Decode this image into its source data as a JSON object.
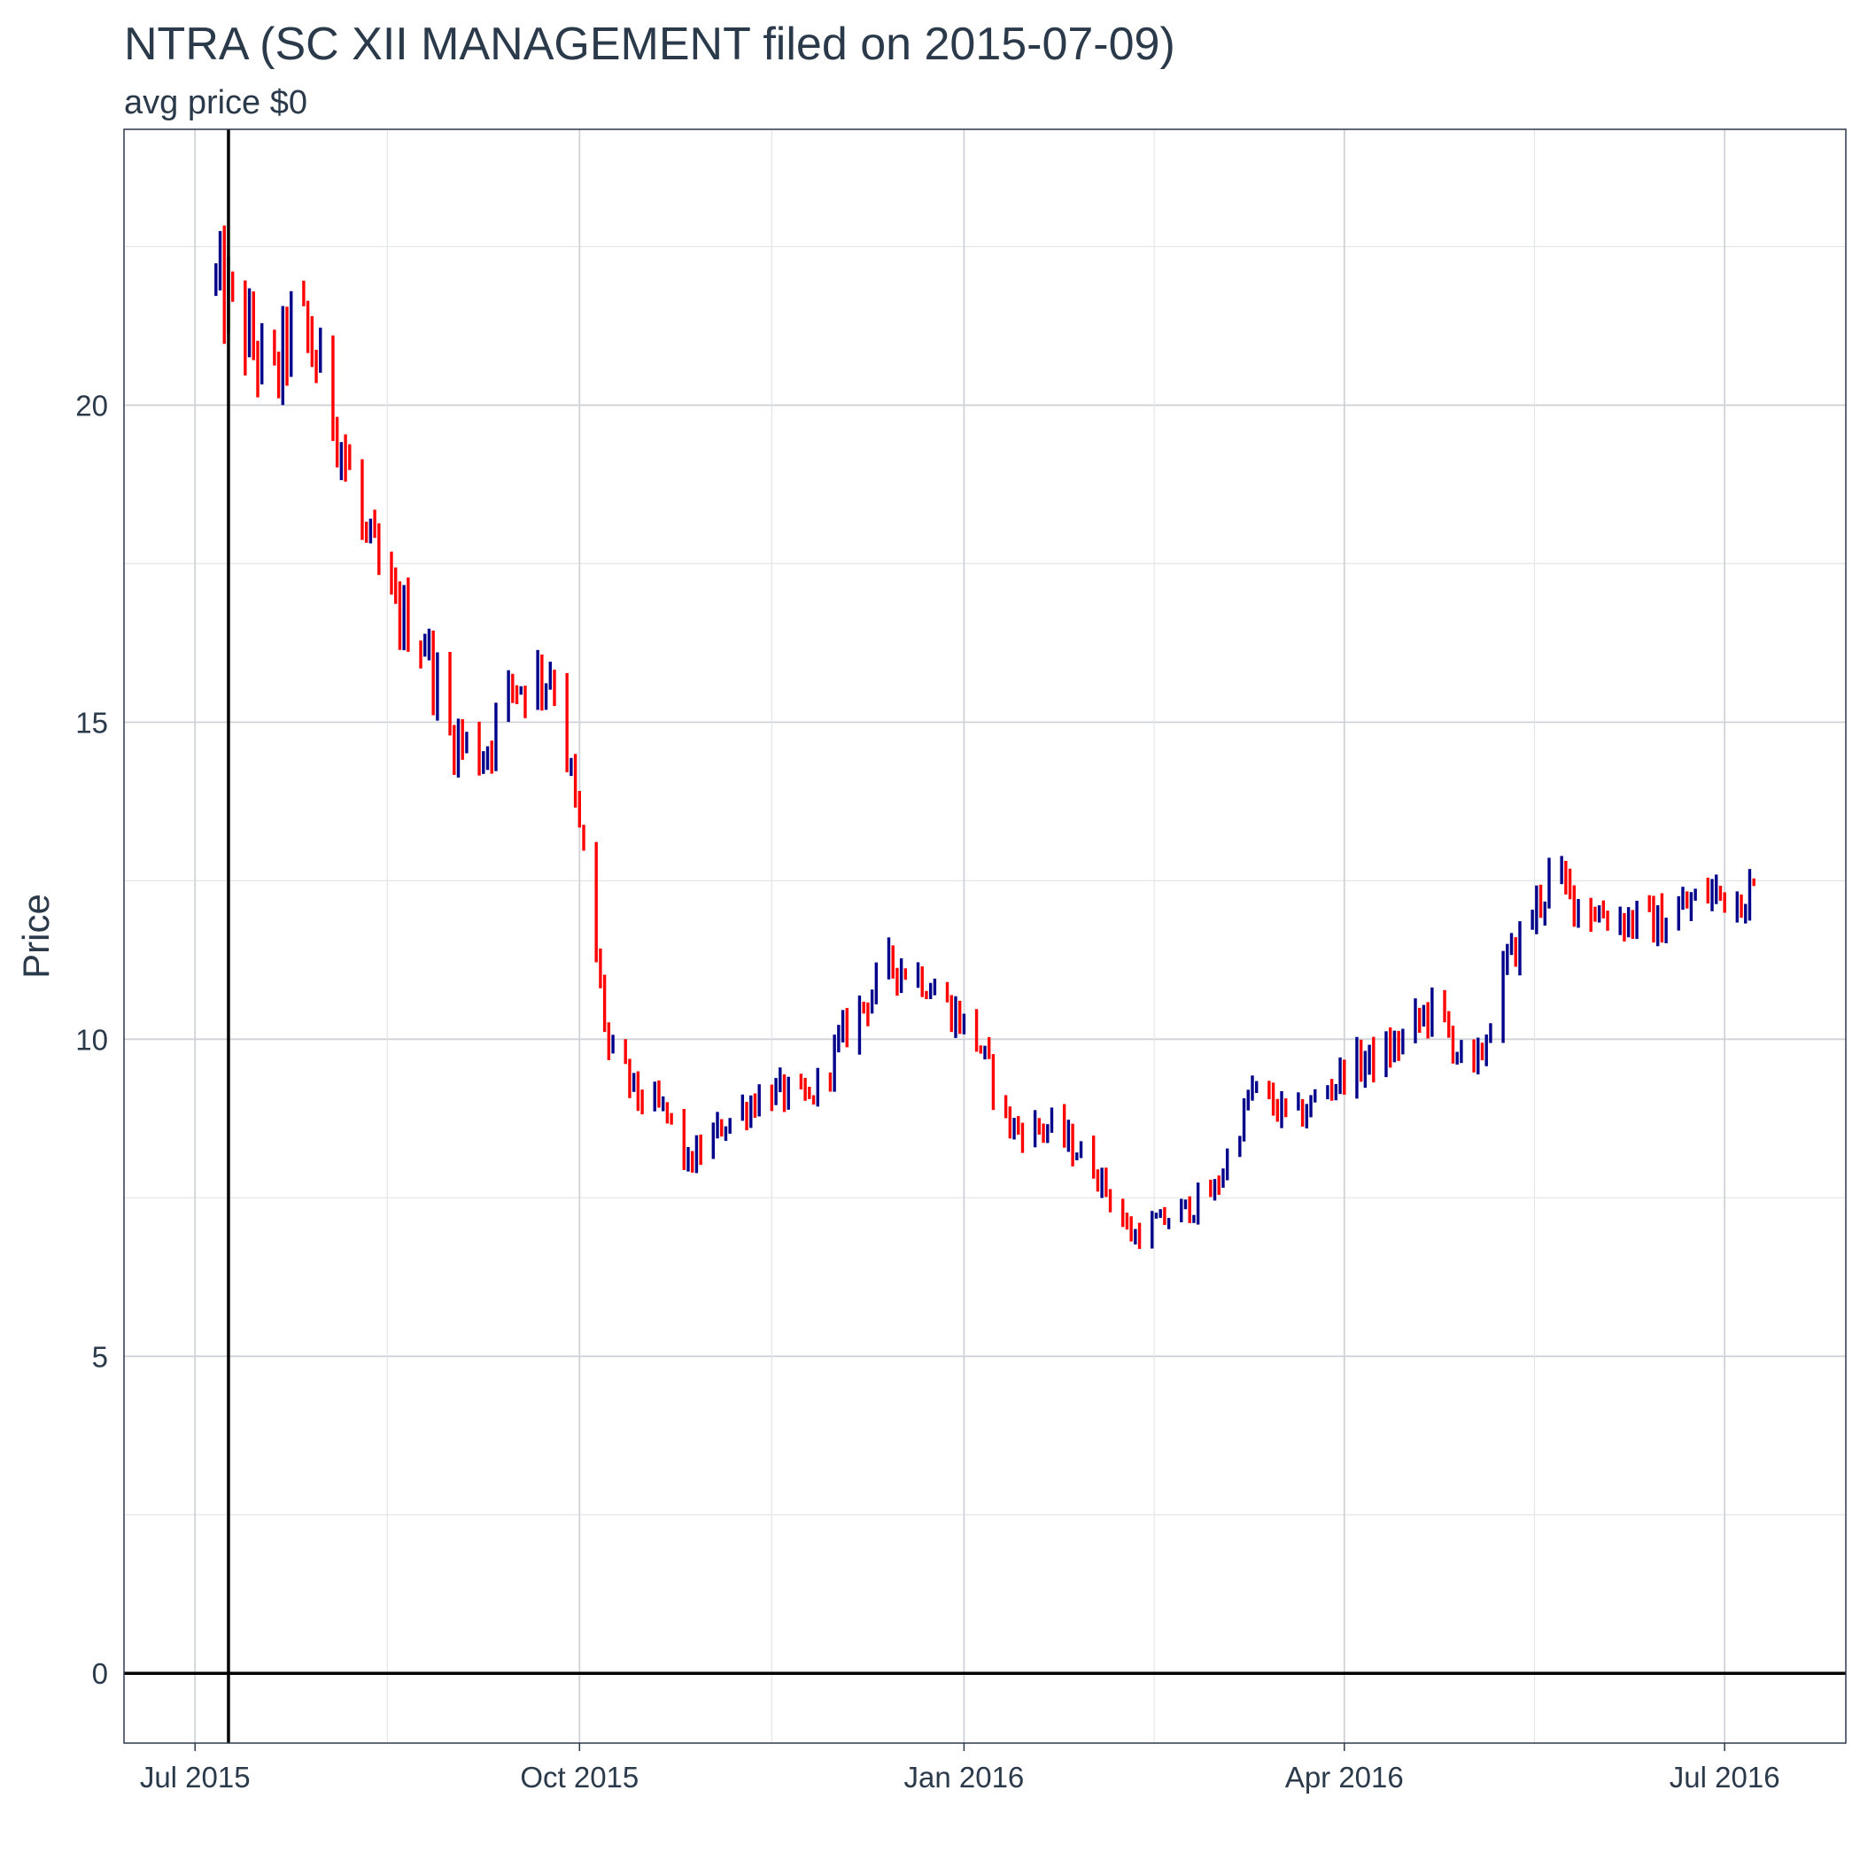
{
  "chart_data": {
    "type": "ohlc",
    "title": "NTRA (SC XII MANAGEMENT filed on 2015-07-09)",
    "subtitle": "avg price $0",
    "xlabel": "",
    "ylabel": "Price",
    "x_axis": "date",
    "xlim": [
      "2015-06-14",
      "2016-07-30"
    ],
    "ylim": [
      -1.1,
      24.35
    ],
    "x_ticks": [
      "2015-07-01",
      "2015-10-01",
      "2016-01-01",
      "2016-04-01",
      "2016-07-01"
    ],
    "x_tick_labels": [
      "Jul 2015",
      "Oct 2015",
      "Jan 2016",
      "Apr 2016",
      "Jul 2016"
    ],
    "y_ticks": [
      0,
      5,
      10,
      15,
      20
    ],
    "y_tick_labels": [
      "0",
      "5",
      "10",
      "15",
      "20"
    ],
    "y_minor_ticks": [
      2.5,
      7.5,
      12.5,
      17.5,
      22.5
    ],
    "grid": true,
    "legend": "none",
    "reference_lines": {
      "vline_date": "2015-07-09",
      "hline_value": 0,
      "color": "#000000"
    },
    "colors": {
      "up": "#00008b",
      "down": "#ff0000",
      "text": "#2b3a4a",
      "grid": "#cfd3d7"
    },
    "anchor_points": [
      [
        "2015-07-05",
        22.0
      ],
      [
        "2015-07-10",
        21.5
      ],
      [
        "2015-07-20",
        20.3
      ],
      [
        "2015-07-25",
        21.5
      ],
      [
        "2015-08-03",
        20.0
      ],
      [
        "2015-08-10",
        18.0
      ],
      [
        "2015-08-17",
        16.8
      ],
      [
        "2015-08-25",
        16.3
      ],
      [
        "2015-08-31",
        14.8
      ],
      [
        "2015-09-08",
        14.5
      ],
      [
        "2015-09-15",
        15.6
      ],
      [
        "2015-09-25",
        15.8
      ],
      [
        "2015-10-02",
        12.8
      ],
      [
        "2015-10-08",
        9.8
      ],
      [
        "2015-10-15",
        9.1
      ],
      [
        "2015-10-22",
        8.8
      ],
      [
        "2015-10-27",
        8.0
      ],
      [
        "2015-11-05",
        8.7
      ],
      [
        "2015-11-15",
        9.2
      ],
      [
        "2015-11-25",
        9.0
      ],
      [
        "2015-12-05",
        10.3
      ],
      [
        "2015-12-15",
        11.2
      ],
      [
        "2015-12-22",
        11.0
      ],
      [
        "2016-01-04",
        10.0
      ],
      [
        "2016-01-12",
        8.6
      ],
      [
        "2016-01-22",
        8.6
      ],
      [
        "2016-02-01",
        8.0
      ],
      [
        "2016-02-10",
        6.9
      ],
      [
        "2016-02-20",
        7.2
      ],
      [
        "2016-03-01",
        7.6
      ],
      [
        "2016-03-10",
        9.2
      ],
      [
        "2016-03-20",
        8.7
      ],
      [
        "2016-04-01",
        9.5
      ],
      [
        "2016-04-12",
        9.8
      ],
      [
        "2016-04-22",
        10.5
      ],
      [
        "2016-05-02",
        9.4
      ],
      [
        "2016-05-10",
        11.2
      ],
      [
        "2016-05-20",
        12.5
      ],
      [
        "2016-06-01",
        12.0
      ],
      [
        "2016-06-15",
        11.8
      ],
      [
        "2016-06-27",
        12.3
      ],
      [
        "2016-07-08",
        12.3
      ]
    ]
  }
}
